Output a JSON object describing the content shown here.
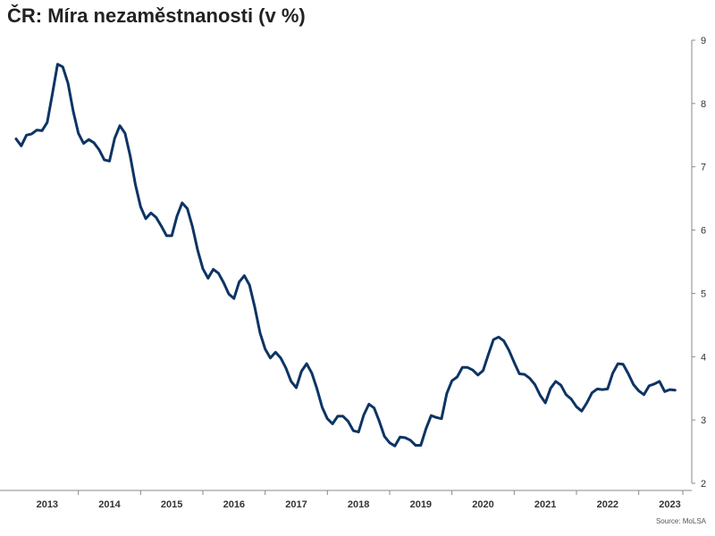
{
  "chart_data": {
    "type": "line",
    "title": "ČR: Míra nezaměstnanosti (v %)",
    "source": "Source: MoLSA",
    "xlabel": "",
    "ylabel": "",
    "ylim": [
      2,
      9
    ],
    "y_ticks": [
      "2",
      "3",
      "4",
      "5",
      "6",
      "7",
      "8",
      "9"
    ],
    "x_ticks": [
      "2013",
      "2014",
      "2015",
      "2016",
      "2017",
      "2018",
      "2019",
      "2020",
      "2021",
      "2022",
      "2023"
    ],
    "grid": false,
    "y_axis_position": "right",
    "color": "#0d3464",
    "series": [
      {
        "x": [
          "2013-01",
          "2013-02",
          "2013-03",
          "2013-04",
          "2013-05",
          "2013-06",
          "2013-07",
          "2013-08",
          "2013-09",
          "2013-10",
          "2013-11",
          "2013-12",
          "2014-01",
          "2014-02",
          "2014-03",
          "2014-04",
          "2014-05",
          "2014-06",
          "2014-07",
          "2014-08",
          "2014-09",
          "2014-10",
          "2014-11",
          "2014-12",
          "2015-01",
          "2015-02",
          "2015-03",
          "2015-04",
          "2015-05",
          "2015-06",
          "2015-07",
          "2015-08",
          "2015-09",
          "2015-10",
          "2015-11",
          "2015-12",
          "2016-01",
          "2016-02",
          "2016-03",
          "2016-04",
          "2016-05",
          "2016-06",
          "2016-07",
          "2016-08",
          "2016-09",
          "2016-10",
          "2016-11",
          "2016-12",
          "2017-01",
          "2017-02",
          "2017-03",
          "2017-04",
          "2017-05",
          "2017-06",
          "2017-07",
          "2017-08",
          "2017-09",
          "2017-10",
          "2017-11",
          "2017-12",
          "2018-01",
          "2018-02",
          "2018-03",
          "2018-04",
          "2018-05",
          "2018-06",
          "2018-07",
          "2018-08",
          "2018-09",
          "2018-10",
          "2018-11",
          "2018-12",
          "2019-01",
          "2019-02",
          "2019-03",
          "2019-04",
          "2019-05",
          "2019-06",
          "2019-07",
          "2019-08",
          "2019-09",
          "2019-10",
          "2019-11",
          "2019-12",
          "2020-01",
          "2020-02",
          "2020-03",
          "2020-04",
          "2020-05",
          "2020-06",
          "2020-07",
          "2020-08",
          "2020-09",
          "2020-10",
          "2020-11",
          "2020-12",
          "2021-01",
          "2021-02",
          "2021-03",
          "2021-04",
          "2021-05",
          "2021-06",
          "2021-07",
          "2021-08",
          "2021-09",
          "2021-10",
          "2021-11",
          "2021-12",
          "2022-01",
          "2022-02",
          "2022-03",
          "2022-04",
          "2022-05",
          "2022-06",
          "2022-07",
          "2022-08",
          "2022-09",
          "2022-10",
          "2022-11",
          "2022-12",
          "2023-01",
          "2023-02",
          "2023-03",
          "2023-04",
          "2023-05",
          "2023-06",
          "2023-07",
          "2023-08"
        ],
        "values": [
          7.44,
          7.33,
          7.5,
          7.52,
          7.58,
          7.57,
          7.7,
          8.15,
          8.62,
          8.58,
          8.32,
          7.88,
          7.53,
          7.37,
          7.43,
          7.38,
          7.27,
          7.11,
          7.09,
          7.45,
          7.65,
          7.53,
          7.17,
          6.72,
          6.37,
          6.18,
          6.27,
          6.2,
          6.06,
          5.91,
          5.91,
          6.22,
          6.43,
          6.34,
          6.05,
          5.68,
          5.39,
          5.24,
          5.38,
          5.32,
          5.17,
          4.99,
          4.92,
          5.18,
          5.28,
          5.13,
          4.78,
          4.38,
          4.12,
          3.98,
          4.07,
          3.98,
          3.82,
          3.61,
          3.51,
          3.77,
          3.89,
          3.74,
          3.49,
          3.2,
          3.02,
          2.94,
          3.06,
          3.06,
          2.98,
          2.83,
          2.81,
          3.08,
          3.25,
          3.19,
          2.98,
          2.74,
          2.64,
          2.59,
          2.73,
          2.72,
          2.68,
          2.6,
          2.6,
          2.86,
          3.07,
          3.04,
          3.02,
          3.42,
          3.62,
          3.68,
          3.83,
          3.83,
          3.79,
          3.71,
          3.78,
          4.03,
          4.27,
          4.31,
          4.25,
          4.1,
          3.91,
          3.73,
          3.72,
          3.66,
          3.56,
          3.39,
          3.27,
          3.5,
          3.61,
          3.55,
          3.4,
          3.33,
          3.21,
          3.14,
          3.27,
          3.43,
          3.49,
          3.48,
          3.49,
          3.74,
          3.89,
          3.88,
          3.73,
          3.56,
          3.46,
          3.4,
          3.54,
          3.57,
          3.61,
          3.45,
          3.48,
          3.47
        ]
      }
    ]
  }
}
